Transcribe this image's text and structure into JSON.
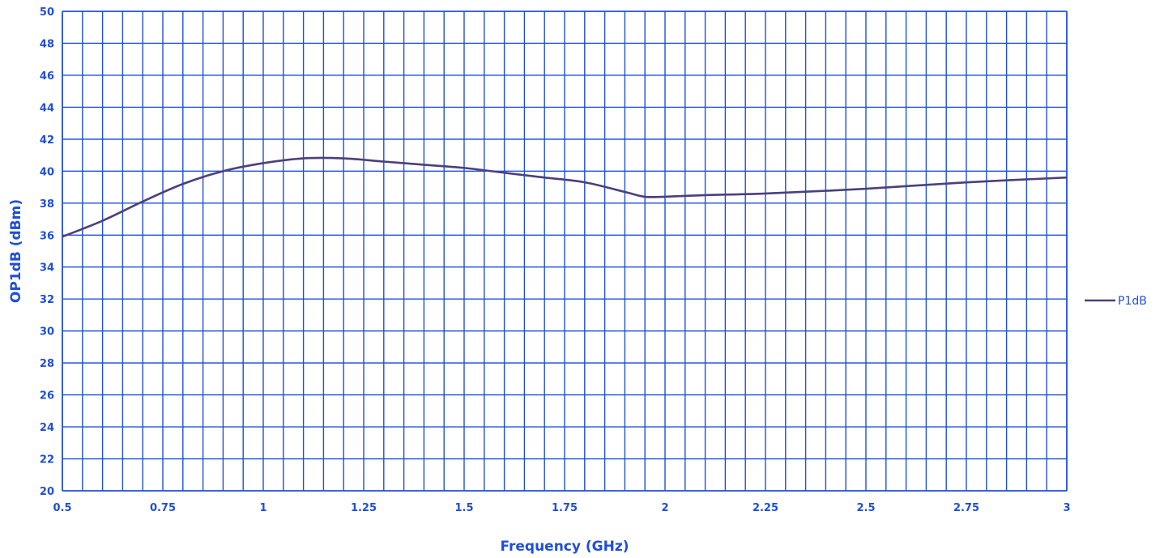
{
  "chart_data": {
    "type": "line",
    "title": "",
    "xlabel": "Frequency (GHz)",
    "ylabel": "OP1dB (dBm)",
    "xlim": [
      0.5,
      3
    ],
    "ylim": [
      20,
      50
    ],
    "x_ticks": [
      "0.5",
      "0.75",
      "1",
      "1.25",
      "1.5",
      "1.75",
      "2",
      "2.25",
      "2.5",
      "2.75",
      "3"
    ],
    "y_ticks": [
      "20",
      "22",
      "24",
      "26",
      "28",
      "30",
      "32",
      "34",
      "36",
      "38",
      "40",
      "42",
      "44",
      "46",
      "48",
      "50"
    ],
    "grid": true,
    "legend_position": "right",
    "axis_color": "#1F4FD8",
    "label_color": "#1F4FD8",
    "series": [
      {
        "name": "P1dB",
        "color": "#4B3F7E",
        "points": [
          [
            0.5,
            35.9
          ],
          [
            0.6,
            36.9
          ],
          [
            0.7,
            38.1
          ],
          [
            0.8,
            39.2
          ],
          [
            0.9,
            40.0
          ],
          [
            1.0,
            40.5
          ],
          [
            1.1,
            40.8
          ],
          [
            1.2,
            40.8
          ],
          [
            1.3,
            40.6
          ],
          [
            1.4,
            40.4
          ],
          [
            1.5,
            40.2
          ],
          [
            1.6,
            39.9
          ],
          [
            1.7,
            39.6
          ],
          [
            1.8,
            39.3
          ],
          [
            1.9,
            38.7
          ],
          [
            1.95,
            38.4
          ],
          [
            2.0,
            38.4
          ],
          [
            2.1,
            38.5
          ],
          [
            2.25,
            38.6
          ],
          [
            2.5,
            38.9
          ],
          [
            2.75,
            39.3
          ],
          [
            3.0,
            39.6
          ]
        ]
      }
    ]
  }
}
